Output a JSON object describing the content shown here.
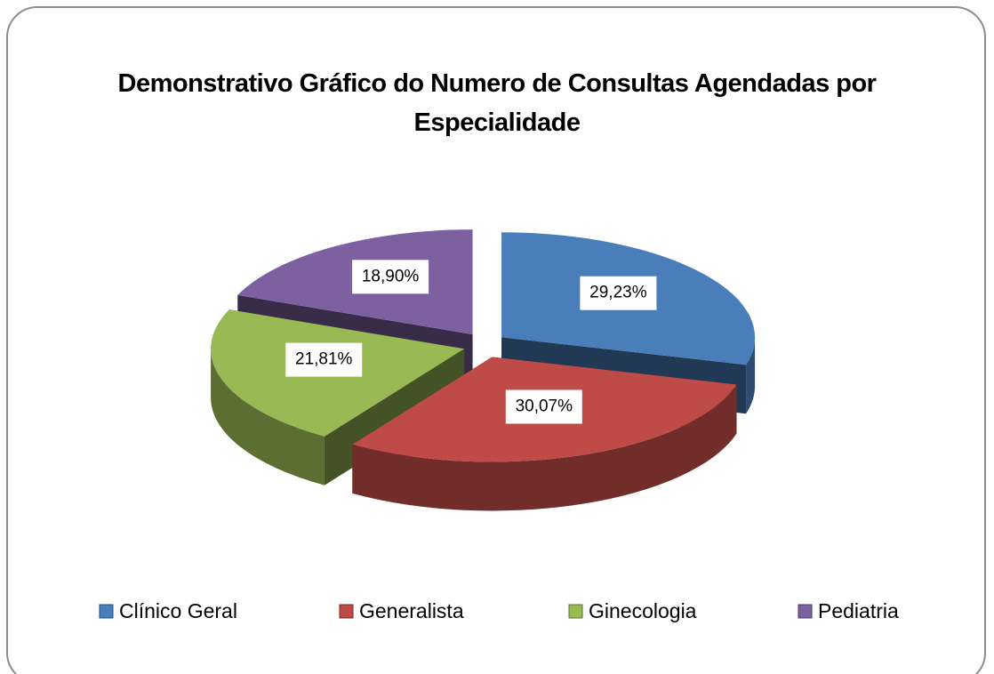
{
  "chart_data": {
    "type": "pie",
    "title": "Demonstrativo Gráfico do Numero de Consultas Agendadas por Especialidade",
    "categories": [
      "Clínico Geral",
      "Generalista",
      "Ginecologia",
      "Pediatria"
    ],
    "values": [
      29.23,
      30.07,
      21.81,
      18.9
    ],
    "value_labels": [
      "29,23%",
      "30,07%",
      "21,81%",
      "18,90%"
    ],
    "colors": [
      "#4a7ebb",
      "#be4b48",
      "#98b954",
      "#7d60a0"
    ],
    "legend": "bottom"
  }
}
